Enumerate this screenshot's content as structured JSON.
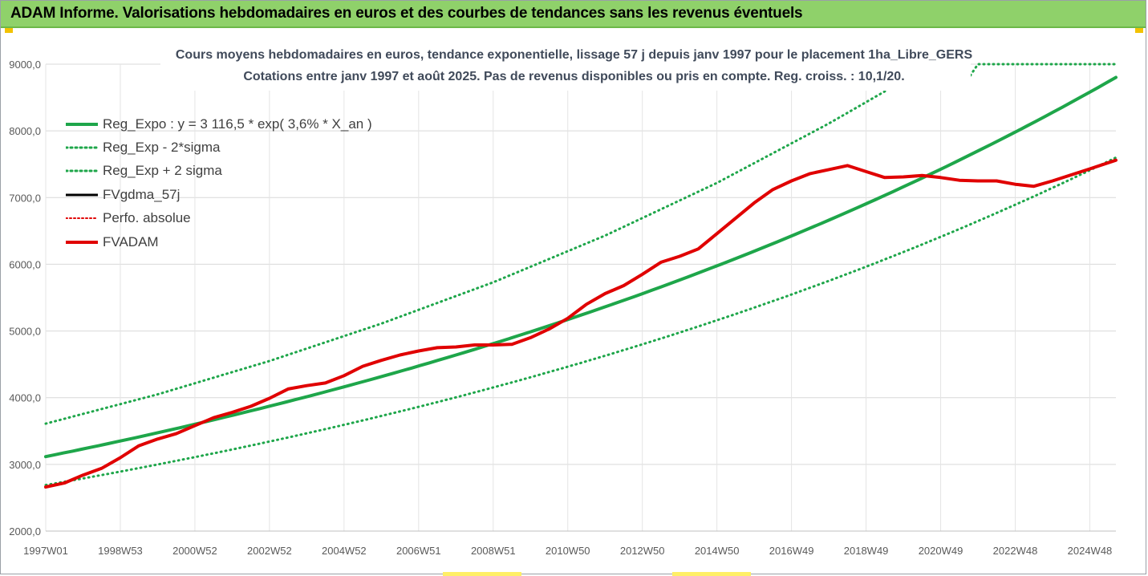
{
  "window": {
    "title": "ADAM Informe. Valorisations hebdomadaires en euros et des courbes de tendances sans les revenus éventuels",
    "title_bg": "#8fd16a"
  },
  "chart_data": {
    "type": "line",
    "title": "Cours moyens hebdomadaires en euros, tendance exponentielle, lissage 57 j depuis janv 1997 pour le placement 1ha_Libre_GERS",
    "subtitle": "Cotations entre janv 1997 et août 2025. Pas de revenus disponibles ou pris en compte. Reg. croiss. : 10,1/20.",
    "xlabel": "",
    "ylabel": "",
    "ylim": [
      2000,
      9000
    ],
    "xlim": [
      1997.0,
      2025.7
    ],
    "yticks": [
      2000,
      3000,
      4000,
      5000,
      6000,
      7000,
      8000,
      9000
    ],
    "ytick_labels": [
      "2000,0",
      "3000,0",
      "4000,0",
      "5000,0",
      "6000,0",
      "7000,0",
      "8000,0",
      "9000,0"
    ],
    "xtick_labels": [
      "1997W01",
      "1998W53",
      "2000W52",
      "2002W52",
      "2004W52",
      "2006W51",
      "2008W51",
      "2010W50",
      "2012W50",
      "2014W50",
      "2016W49",
      "2018W49",
      "2020W49",
      "2022W48",
      "2024W48"
    ],
    "xtick_positions": [
      1997.0,
      1999.0,
      2001.0,
      2003.0,
      2005.0,
      2007.0,
      2009.0,
      2011.0,
      2013.0,
      2015.0,
      2017.0,
      2019.0,
      2021.0,
      2023.0,
      2025.0
    ],
    "grid": true,
    "legend_position": "top-left",
    "series": [
      {
        "name": "Reg_Expo : y = 3 116,5 * exp( 3,6% *  X_an )",
        "color": "#1ea64a",
        "style": "solid",
        "width": 4,
        "x": [
          1997.0,
          2025.7
        ],
        "y": [
          3116.5,
          8801
        ]
      },
      {
        "name": "Reg_Exp - 2*sigma",
        "color": "#1ea64a",
        "style": "dotted",
        "width": 3,
        "x": [
          1997.0,
          2025.7
        ],
        "y": [
          2690,
          7600
        ]
      },
      {
        "name": "Reg_Exp + 2 sigma",
        "color": "#1ea64a",
        "style": "dotted",
        "width": 3,
        "x": [
          1997.0,
          2000.0,
          2003.0,
          2006.0,
          2009.0,
          2012.0,
          2015.0,
          2018.0,
          2019.9,
          2020.0,
          2021.7,
          2022.0,
          2025.7
        ],
        "y": [
          3610,
          4050,
          4550,
          5110,
          5730,
          6430,
          7220,
          8110,
          8720,
          8720,
          8750,
          9000,
          9000
        ]
      },
      {
        "name": "FVgdma_57j",
        "color": "#000000",
        "style": "solid",
        "width": 3,
        "x": [],
        "y": []
      },
      {
        "name": "Perfo. absolue",
        "color": "#e00000",
        "style": "dotted",
        "width": 2,
        "x": [],
        "y": []
      },
      {
        "name": "FVADAM",
        "color": "#e00000",
        "style": "solid",
        "width": 4,
        "x": [
          1997.0,
          1997.5,
          1998.0,
          1998.5,
          1999.0,
          1999.5,
          2000.0,
          2000.5,
          2001.0,
          2001.5,
          2002.0,
          2002.5,
          2003.0,
          2003.5,
          2004.0,
          2004.5,
          2005.0,
          2005.5,
          2006.0,
          2006.5,
          2007.0,
          2007.5,
          2008.0,
          2008.5,
          2009.0,
          2009.5,
          2010.0,
          2010.5,
          2011.0,
          2011.5,
          2012.0,
          2012.5,
          2013.0,
          2013.5,
          2014.0,
          2014.5,
          2015.0,
          2015.5,
          2016.0,
          2016.5,
          2017.0,
          2017.5,
          2018.0,
          2018.5,
          2019.0,
          2019.5,
          2020.0,
          2020.5,
          2021.0,
          2021.5,
          2022.0,
          2022.5,
          2023.0,
          2023.5,
          2024.0,
          2024.5,
          2025.0,
          2025.7
        ],
        "y": [
          2660,
          2720,
          2840,
          2940,
          3100,
          3280,
          3380,
          3460,
          3580,
          3700,
          3780,
          3870,
          3990,
          4130,
          4180,
          4220,
          4330,
          4470,
          4560,
          4640,
          4700,
          4750,
          4760,
          4790,
          4790,
          4800,
          4900,
          5030,
          5190,
          5400,
          5560,
          5680,
          5850,
          6030,
          6120,
          6230,
          6460,
          6690,
          6920,
          7120,
          7250,
          7360,
          7420,
          7480,
          7390,
          7300,
          7310,
          7330,
          7300,
          7260,
          7250,
          7250,
          7200,
          7170,
          7250,
          7340,
          7430,
          7560
        ]
      }
    ]
  }
}
